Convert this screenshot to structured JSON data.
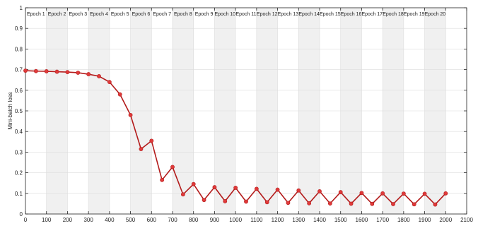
{
  "chart_data": {
    "type": "line",
    "title": "",
    "xlabel": "",
    "ylabel": "Mini-batch loss",
    "xlim": [
      0,
      2100
    ],
    "ylim": [
      0,
      1
    ],
    "x_ticks": [
      0,
      100,
      200,
      300,
      400,
      500,
      600,
      700,
      800,
      900,
      1000,
      1100,
      1200,
      1300,
      1400,
      1500,
      1600,
      1700,
      1800,
      1900,
      2000,
      2100
    ],
    "y_ticks": [
      0,
      0.1,
      0.2,
      0.3,
      0.4,
      0.5,
      0.6,
      0.7,
      0.8,
      0.9,
      1
    ],
    "y_tick_labels": [
      "0",
      "0.1",
      "0.2",
      "0.3",
      "0.4",
      "0.5",
      "0.6",
      "0.7",
      "0.8",
      "0.9",
      "1"
    ],
    "grid": true,
    "epoch_bands": {
      "width": 100,
      "shaded_color": "#f0f0f0",
      "labels": [
        "Epoch 1",
        "Epoch 2",
        "Epoch 3",
        "Epoch 4",
        "Epoch 5",
        "Epoch 6",
        "Epoch 7",
        "Epoch 8",
        "Epoch 9",
        "Epoch 10",
        "Epoch 11",
        "Epoch 12",
        "Epoch 13",
        "Epoch 14",
        "Epoch 15",
        "Epoch 16",
        "Epoch 17",
        "Epoch 18",
        "Epoch 19",
        "Epoch 20"
      ]
    },
    "series": [
      {
        "color": "#e03a3a",
        "line_color": "#b31b1b",
        "x": [
          0,
          50,
          100,
          150,
          200,
          250,
          300,
          350,
          400,
          450,
          500,
          550,
          600,
          650,
          700,
          750,
          800,
          850,
          900,
          950,
          1000,
          1050,
          1100,
          1150,
          1200,
          1250,
          1300,
          1350,
          1400,
          1450,
          1500,
          1550,
          1600,
          1650,
          1700,
          1750,
          1800,
          1850,
          1900,
          1950,
          2000
        ],
        "y": [
          0.695,
          0.693,
          0.692,
          0.69,
          0.688,
          0.685,
          0.678,
          0.668,
          0.64,
          0.58,
          0.48,
          0.315,
          0.355,
          0.165,
          0.228,
          0.095,
          0.145,
          0.068,
          0.13,
          0.062,
          0.127,
          0.06,
          0.122,
          0.057,
          0.118,
          0.054,
          0.114,
          0.052,
          0.11,
          0.051,
          0.106,
          0.05,
          0.102,
          0.049,
          0.1,
          0.048,
          0.099,
          0.047,
          0.098,
          0.046,
          0.1
        ]
      }
    ]
  }
}
